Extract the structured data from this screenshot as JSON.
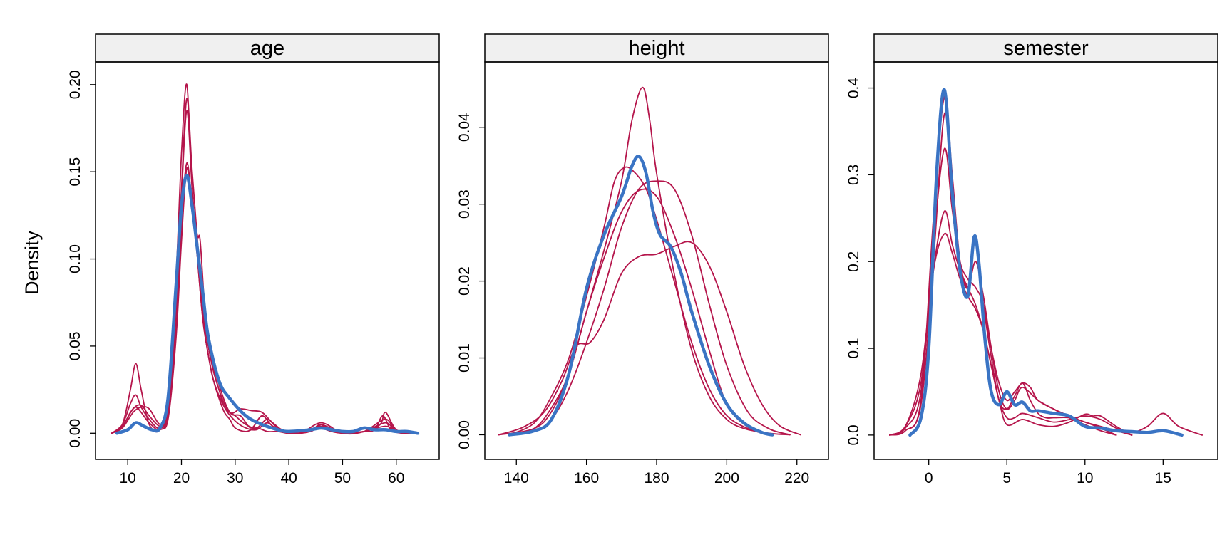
{
  "figure": {
    "ylabel": "Density"
  },
  "colors": {
    "observed": "#3a74c4",
    "imputed": "#b5154b",
    "strip": "#f0f0f0"
  },
  "chart_data": [
    {
      "type": "line",
      "title": "age",
      "xlim": [
        4,
        68
      ],
      "ylim": [
        -0.015,
        0.213
      ],
      "xticks": [
        10,
        20,
        30,
        40,
        50,
        60
      ],
      "xtick_labels": [
        "10",
        "20",
        "30",
        "40",
        "50",
        "60"
      ],
      "yticks": [
        0,
        0.05,
        0.1,
        0.15,
        0.2
      ],
      "ytick_labels": [
        "0.00",
        "0.05",
        "0.10",
        "0.15",
        "0.20"
      ],
      "series": [
        {
          "role": "observed",
          "x": [
            8,
            10,
            11.5,
            13,
            14.5,
            16,
            17.5,
            19,
            20,
            21,
            22,
            23,
            24,
            25,
            27,
            29,
            32,
            35,
            38,
            40,
            44,
            46,
            48,
            50,
            52,
            54,
            56,
            58,
            60,
            62,
            64
          ],
          "y": [
            0,
            0.002,
            0.006,
            0.004,
            0.002,
            0.003,
            0.02,
            0.085,
            0.13,
            0.148,
            0.13,
            0.105,
            0.08,
            0.055,
            0.03,
            0.02,
            0.01,
            0.005,
            0.002,
            0.001,
            0.002,
            0.003,
            0.002,
            0.001,
            0.001,
            0.003,
            0.002,
            0.002,
            0.001,
            0.001,
            0
          ]
        },
        {
          "role": "imputed",
          "x": [
            7,
            9,
            10.5,
            11.5,
            12.5,
            14,
            16,
            17.5,
            19,
            20,
            21,
            22,
            23,
            24,
            25,
            26,
            27,
            28,
            29,
            30,
            32,
            34,
            36,
            38,
            40,
            44,
            46,
            47,
            50,
            54,
            56,
            57.5,
            59,
            61,
            63
          ],
          "y": [
            0,
            0.005,
            0.025,
            0.04,
            0.025,
            0.005,
            0.002,
            0.02,
            0.09,
            0.16,
            0.2,
            0.14,
            0.1,
            0.065,
            0.045,
            0.03,
            0.02,
            0.012,
            0.008,
            0.003,
            0.001,
            0.003,
            0.001,
            0.001,
            0,
            0.001,
            0.005,
            0.002,
            0,
            0.001,
            0.002,
            0.01,
            0.002,
            0,
            0
          ]
        },
        {
          "role": "imputed",
          "x": [
            7,
            9,
            10.5,
            11.5,
            12.5,
            14,
            16,
            17.5,
            19,
            20,
            21,
            22,
            23,
            24,
            25,
            26,
            27,
            28,
            30,
            32,
            34,
            36,
            38,
            42,
            46,
            50,
            54,
            57,
            58,
            60,
            63
          ],
          "y": [
            0,
            0.005,
            0.017,
            0.022,
            0.015,
            0.008,
            0.003,
            0.015,
            0.08,
            0.14,
            0.192,
            0.15,
            0.11,
            0.07,
            0.05,
            0.035,
            0.025,
            0.015,
            0.007,
            0.003,
            0.002,
            0.006,
            0.002,
            0,
            0.004,
            0,
            0.001,
            0.005,
            0.012,
            0.002,
            0
          ]
        },
        {
          "role": "imputed",
          "x": [
            7,
            9,
            10.5,
            11.5,
            12.5,
            14,
            16,
            17.5,
            19,
            20,
            21,
            22,
            23,
            24,
            25,
            26,
            28,
            30,
            32,
            34,
            36,
            38,
            42,
            46,
            50,
            54,
            58,
            60,
            63
          ],
          "y": [
            0,
            0.004,
            0.012,
            0.015,
            0.012,
            0.006,
            0.002,
            0.012,
            0.07,
            0.135,
            0.185,
            0.14,
            0.1,
            0.065,
            0.045,
            0.03,
            0.015,
            0.01,
            0.005,
            0.003,
            0.008,
            0.003,
            0,
            0.006,
            0,
            0.001,
            0.008,
            0.001,
            0
          ],
          "note": ""
        },
        {
          "role": "imputed",
          "x": [
            7,
            9,
            11,
            12.5,
            14,
            16,
            17.5,
            19,
            20,
            21,
            22,
            23,
            24,
            25,
            27,
            29,
            31,
            33,
            35,
            37,
            40,
            44,
            46,
            50,
            54,
            58,
            60,
            63
          ],
          "y": [
            0,
            0.003,
            0.012,
            0.015,
            0.014,
            0.005,
            0.01,
            0.06,
            0.12,
            0.155,
            0.13,
            0.1,
            0.07,
            0.05,
            0.025,
            0.012,
            0.014,
            0.013,
            0.012,
            0.006,
            0,
            0.001,
            0.004,
            0,
            0.001,
            0.004,
            0.001,
            0
          ]
        },
        {
          "role": "imputed",
          "x": [
            7,
            9,
            11,
            12.5,
            14,
            16,
            17.5,
            19,
            20,
            21,
            22,
            23,
            23.5,
            24.5,
            25.5,
            27,
            29,
            31,
            33,
            35,
            37,
            40,
            44,
            46,
            50,
            54,
            58,
            60,
            63
          ],
          "y": [
            0,
            0.004,
            0.014,
            0.016,
            0.01,
            0.004,
            0.008,
            0.055,
            0.11,
            0.152,
            0.13,
            0.113,
            0.11,
            0.065,
            0.048,
            0.028,
            0.012,
            0.01,
            0.003,
            0.01,
            0.004,
            0,
            0.001,
            0.005,
            0,
            0.001,
            0.006,
            0.001,
            0
          ]
        }
      ]
    },
    {
      "type": "line",
      "title": "height",
      "xlim": [
        131,
        229
      ],
      "ylim": [
        -0.0032,
        0.0485
      ],
      "xticks": [
        140,
        160,
        180,
        200,
        220
      ],
      "xtick_labels": [
        "140",
        "160",
        "180",
        "200",
        "220"
      ],
      "yticks": [
        0,
        0.01,
        0.02,
        0.03,
        0.04
      ],
      "ytick_labels": [
        "0.00",
        "0.01",
        "0.02",
        "0.03",
        "0.04"
      ],
      "series": [
        {
          "role": "observed",
          "x": [
            138,
            145,
            150,
            155,
            160,
            165,
            170,
            173,
            175,
            177,
            179,
            181,
            184,
            187,
            190,
            195,
            200,
            205,
            210,
            213
          ],
          "y": [
            0,
            0.0005,
            0.002,
            0.008,
            0.019,
            0.026,
            0.031,
            0.035,
            0.0362,
            0.034,
            0.029,
            0.026,
            0.0245,
            0.021,
            0.016,
            0.009,
            0.004,
            0.0015,
            0.0003,
            0
          ]
        },
        {
          "role": "imputed",
          "x": [
            135,
            145,
            150,
            155,
            160,
            165,
            170,
            173,
            176,
            178,
            180,
            185,
            190,
            195,
            200,
            205,
            212,
            218
          ],
          "y": [
            0,
            0.0008,
            0.003,
            0.008,
            0.016,
            0.024,
            0.033,
            0.041,
            0.0452,
            0.041,
            0.034,
            0.021,
            0.011,
            0.005,
            0.002,
            0.0008,
            0.0002,
            0
          ]
        },
        {
          "role": "imputed",
          "x": [
            138,
            145,
            150,
            155,
            160,
            165,
            170,
            175,
            180,
            185,
            190,
            195,
            200,
            206,
            212,
            218
          ],
          "y": [
            0,
            0.0005,
            0.002,
            0.006,
            0.012,
            0.019,
            0.027,
            0.032,
            0.033,
            0.032,
            0.026,
            0.017,
            0.009,
            0.003,
            0.0008,
            0
          ]
        },
        {
          "role": "imputed",
          "x": [
            138,
            145,
            150,
            155,
            160,
            165,
            168,
            171,
            174,
            177,
            180,
            185,
            190,
            195,
            200,
            206,
            212
          ],
          "y": [
            0,
            0.0015,
            0.005,
            0.01,
            0.018,
            0.027,
            0.033,
            0.0348,
            0.034,
            0.032,
            0.028,
            0.02,
            0.012,
            0.006,
            0.0025,
            0.0008,
            0
          ]
        },
        {
          "role": "imputed",
          "x": [
            135,
            142,
            148,
            153,
            157,
            161,
            165,
            170,
            175,
            180,
            185,
            190,
            195,
            200,
            205,
            210,
            215,
            221
          ],
          "y": [
            0,
            0.001,
            0.003,
            0.007,
            0.0115,
            0.012,
            0.015,
            0.021,
            0.0232,
            0.0235,
            0.0245,
            0.025,
            0.022,
            0.016,
            0.009,
            0.004,
            0.0012,
            0
          ]
        },
        {
          "role": "imputed",
          "x": [
            138,
            145,
            150,
            155,
            160,
            165,
            170,
            175,
            180,
            185,
            190,
            195,
            200,
            206,
            212
          ],
          "y": [
            0,
            0.0008,
            0.0035,
            0.008,
            0.016,
            0.023,
            0.029,
            0.0318,
            0.031,
            0.026,
            0.019,
            0.011,
            0.004,
            0.001,
            0
          ]
        }
      ]
    },
    {
      "type": "line",
      "title": "semester",
      "xlim": [
        -3.5,
        18.5
      ],
      "ylim": [
        -0.028,
        0.43
      ],
      "xticks": [
        0,
        5,
        10,
        15
      ],
      "xtick_labels": [
        "0",
        "5",
        "10",
        "15"
      ],
      "yticks": [
        0,
        0.1,
        0.2,
        0.3,
        0.4
      ],
      "ytick_labels": [
        "0.0",
        "0.1",
        "0.2",
        "0.3",
        "0.4"
      ],
      "series": [
        {
          "role": "observed",
          "x": [
            -1.2,
            -0.5,
            0,
            0.5,
            1,
            1.5,
            2,
            2.5,
            2.9,
            3.2,
            3.6,
            4,
            4.5,
            5,
            5.5,
            6,
            6.5,
            7,
            8,
            9,
            10,
            11,
            12,
            13,
            14,
            15,
            16,
            16.2
          ],
          "y": [
            0,
            0.02,
            0.1,
            0.3,
            0.398,
            0.28,
            0.19,
            0.16,
            0.228,
            0.2,
            0.11,
            0.05,
            0.035,
            0.05,
            0.035,
            0.038,
            0.028,
            0.028,
            0.025,
            0.022,
            0.01,
            0.008,
            0.005,
            0.004,
            0.003,
            0.005,
            0.001,
            0
          ]
        },
        {
          "role": "imputed",
          "x": [
            -2.5,
            -1.5,
            -0.5,
            0.3,
            1,
            1.5,
            2,
            2.5,
            3,
            3.5,
            4,
            4.5,
            5,
            5.5,
            6,
            6.5,
            7,
            7.5,
            8,
            9,
            10,
            11,
            12
          ],
          "y": [
            0,
            0.005,
            0.04,
            0.25,
            0.39,
            0.3,
            0.2,
            0.17,
            0.225,
            0.15,
            0.09,
            0.04,
            0.03,
            0.045,
            0.06,
            0.04,
            0.025,
            0.02,
            0.02,
            0.02,
            0.015,
            0.008,
            0
          ]
        },
        {
          "role": "imputed",
          "x": [
            -2.5,
            -1.5,
            -0.5,
            0.3,
            1,
            1.5,
            2,
            2.5,
            3,
            3.5,
            4,
            4.5,
            5,
            5.5,
            6,
            7,
            8,
            9,
            10,
            11,
            12
          ],
          "y": [
            0,
            0.005,
            0.035,
            0.2,
            0.37,
            0.28,
            0.2,
            0.17,
            0.2,
            0.16,
            0.1,
            0.05,
            0.03,
            0.04,
            0.055,
            0.04,
            0.03,
            0.02,
            0.012,
            0.005,
            0
          ]
        },
        {
          "role": "imputed",
          "x": [
            -2.5,
            -1.5,
            -0.5,
            0.3,
            1,
            1.5,
            2,
            2.5,
            3,
            3.5,
            4,
            4.5,
            5,
            5.5,
            6,
            6.5,
            7,
            8,
            9,
            10,
            11,
            12,
            13
          ],
          "y": [
            0,
            0.008,
            0.05,
            0.22,
            0.33,
            0.26,
            0.2,
            0.18,
            0.17,
            0.15,
            0.1,
            0.06,
            0.04,
            0.05,
            0.06,
            0.055,
            0.04,
            0.03,
            0.022,
            0.015,
            0.01,
            0.005,
            0
          ]
        },
        {
          "role": "imputed",
          "x": [
            -2.5,
            -1.5,
            -0.5,
            0.3,
            1,
            1.5,
            2,
            2.5,
            3,
            3.5,
            4,
            4.5,
            5,
            5.5,
            6,
            7,
            8,
            9,
            10,
            11,
            12,
            13,
            14,
            15,
            16,
            17.5
          ],
          "y": [
            0,
            0.01,
            0.06,
            0.19,
            0.258,
            0.22,
            0.19,
            0.17,
            0.15,
            0.12,
            0.08,
            0.04,
            0.02,
            0.02,
            0.025,
            0.02,
            0.015,
            0.018,
            0.022,
            0.018,
            0.008,
            0.003,
            0.01,
            0.025,
            0.01,
            0
          ]
        },
        {
          "role": "imputed",
          "x": [
            -2.5,
            -1.5,
            -0.5,
            0.3,
            1,
            1.5,
            2,
            2.5,
            3,
            3.5,
            4,
            4.5,
            5,
            6,
            7,
            8,
            9,
            10,
            10.5,
            11,
            12,
            13
          ],
          "y": [
            0,
            0.01,
            0.07,
            0.19,
            0.232,
            0.21,
            0.18,
            0.16,
            0.145,
            0.12,
            0.08,
            0.04,
            0.012,
            0.018,
            0.012,
            0.01,
            0.015,
            0.024,
            0.022,
            0.022,
            0.01,
            0
          ]
        }
      ]
    }
  ]
}
